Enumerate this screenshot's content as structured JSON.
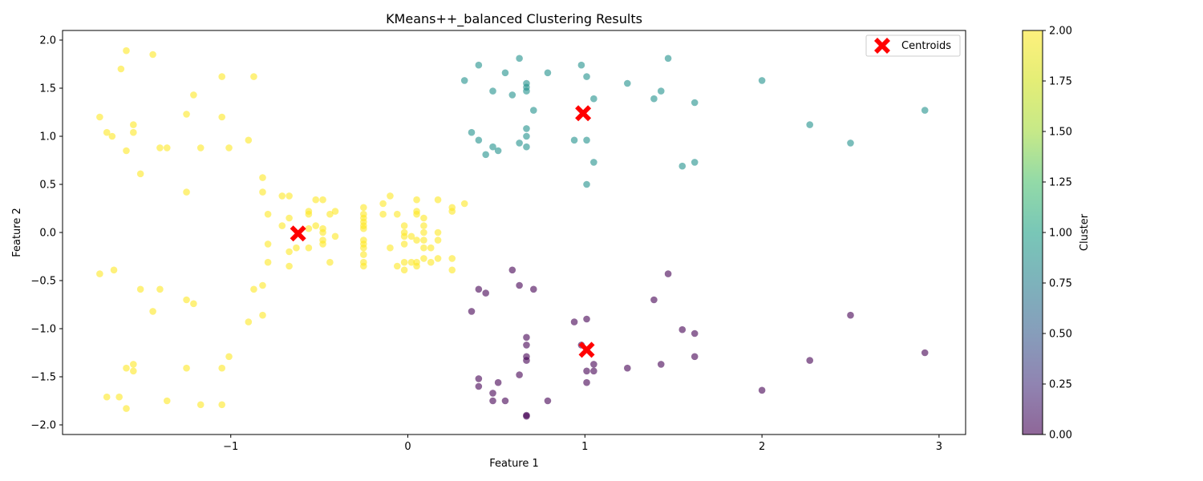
{
  "chart_data": {
    "type": "scatter",
    "title": "KMeans++_balanced Clustering Results",
    "xlabel": "Feature 1",
    "ylabel": "Feature 2",
    "xlim": [
      -1.95,
      3.15
    ],
    "ylim": [
      -2.1,
      2.1
    ],
    "xticks": [
      -1,
      0,
      1,
      2,
      3
    ],
    "xtick_labels": [
      "−1",
      "0",
      "1",
      "2",
      "3"
    ],
    "yticks": [
      -2.0,
      -1.5,
      -1.0,
      -0.5,
      0.0,
      0.5,
      1.0,
      1.5,
      2.0
    ],
    "ytick_labels": [
      "−2.0",
      "−1.5",
      "−1.0",
      "−0.5",
      "0.0",
      "0.5",
      "1.0",
      "1.5",
      "2.0"
    ],
    "grid": false,
    "point_alpha": 0.6,
    "colors": {
      "cluster_0": "#440154",
      "cluster_1": "#21918c",
      "cluster_2": "#fde725",
      "centroid": "#ff0000"
    },
    "series": [
      {
        "name": "Cluster 2",
        "cluster": 2,
        "points": [
          [
            -1.59,
            1.89
          ],
          [
            -1.44,
            1.85
          ],
          [
            -1.62,
            1.7
          ],
          [
            -1.05,
            1.62
          ],
          [
            -0.87,
            1.62
          ],
          [
            -1.21,
            1.43
          ],
          [
            -1.74,
            1.2
          ],
          [
            -1.25,
            1.23
          ],
          [
            -1.05,
            1.2
          ],
          [
            -1.55,
            1.12
          ],
          [
            -1.7,
            1.04
          ],
          [
            -1.55,
            1.04
          ],
          [
            -1.67,
            1.0
          ],
          [
            -0.9,
            0.96
          ],
          [
            -1.4,
            0.88
          ],
          [
            -1.36,
            0.88
          ],
          [
            -1.17,
            0.88
          ],
          [
            -1.01,
            0.88
          ],
          [
            -1.59,
            0.85
          ],
          [
            -1.51,
            0.61
          ],
          [
            -0.82,
            0.57
          ],
          [
            -1.25,
            0.42
          ],
          [
            -0.82,
            0.42
          ],
          [
            -0.71,
            0.38
          ],
          [
            -0.67,
            0.38
          ],
          [
            -0.52,
            0.34
          ],
          [
            -0.48,
            0.34
          ],
          [
            -0.56,
            0.22
          ],
          [
            -0.41,
            0.22
          ],
          [
            -0.79,
            0.19
          ],
          [
            -0.56,
            0.19
          ],
          [
            -0.44,
            0.19
          ],
          [
            -0.67,
            0.15
          ],
          [
            -0.71,
            0.07
          ],
          [
            -0.52,
            0.07
          ],
          [
            -0.56,
            0.04
          ],
          [
            -0.48,
            0.04
          ],
          [
            -0.48,
            0.0
          ],
          [
            -0.41,
            -0.04
          ],
          [
            -0.48,
            -0.08
          ],
          [
            -0.48,
            -0.12
          ],
          [
            -0.79,
            -0.12
          ],
          [
            -0.56,
            -0.16
          ],
          [
            -0.63,
            -0.16
          ],
          [
            -0.67,
            -0.2
          ],
          [
            -0.79,
            -0.31
          ],
          [
            -0.44,
            -0.31
          ],
          [
            -0.67,
            -0.35
          ],
          [
            -0.25,
            0.26
          ],
          [
            -0.25,
            0.19
          ],
          [
            -0.25,
            0.15
          ],
          [
            -0.25,
            0.11
          ],
          [
            -0.25,
            0.07
          ],
          [
            -0.25,
            0.04
          ],
          [
            -0.25,
            -0.08
          ],
          [
            -0.25,
            -0.12
          ],
          [
            -0.25,
            -0.16
          ],
          [
            -0.25,
            -0.23
          ],
          [
            -0.25,
            -0.31
          ],
          [
            -0.25,
            -0.35
          ],
          [
            -0.1,
            0.38
          ],
          [
            -0.14,
            0.3
          ],
          [
            -0.14,
            0.19
          ],
          [
            -0.06,
            0.19
          ],
          [
            -0.02,
            0.07
          ],
          [
            -0.02,
            0.0
          ],
          [
            0.02,
            -0.04
          ],
          [
            -0.02,
            -0.04
          ],
          [
            -0.1,
            -0.16
          ],
          [
            -0.02,
            -0.12
          ],
          [
            -0.06,
            -0.35
          ],
          [
            -0.02,
            -0.39
          ],
          [
            -0.02,
            -0.31
          ],
          [
            0.02,
            -0.31
          ],
          [
            0.05,
            0.34
          ],
          [
            0.05,
            0.22
          ],
          [
            0.05,
            0.19
          ],
          [
            0.09,
            0.15
          ],
          [
            0.09,
            0.07
          ],
          [
            0.09,
            0.0
          ],
          [
            0.05,
            -0.08
          ],
          [
            0.09,
            -0.08
          ],
          [
            0.09,
            -0.16
          ],
          [
            0.13,
            -0.16
          ],
          [
            0.09,
            -0.27
          ],
          [
            0.05,
            -0.31
          ],
          [
            0.05,
            -0.35
          ],
          [
            0.13,
            -0.31
          ],
          [
            0.17,
            0.34
          ],
          [
            0.17,
            0.0
          ],
          [
            0.17,
            -0.08
          ],
          [
            0.17,
            -0.27
          ],
          [
            0.25,
            0.26
          ],
          [
            0.25,
            0.22
          ],
          [
            0.32,
            0.3
          ],
          [
            0.25,
            -0.27
          ],
          [
            0.25,
            -0.39
          ],
          [
            -1.74,
            -0.43
          ],
          [
            -1.66,
            -0.39
          ],
          [
            -1.51,
            -0.59
          ],
          [
            -1.4,
            -0.59
          ],
          [
            -0.87,
            -0.59
          ],
          [
            -0.82,
            -0.55
          ],
          [
            -1.25,
            -0.7
          ],
          [
            -1.21,
            -0.74
          ],
          [
            -1.44,
            -0.82
          ],
          [
            -0.82,
            -0.86
          ],
          [
            -0.9,
            -0.93
          ],
          [
            -1.01,
            -1.29
          ],
          [
            -1.55,
            -1.37
          ],
          [
            -1.59,
            -1.41
          ],
          [
            -1.55,
            -1.44
          ],
          [
            -1.25,
            -1.41
          ],
          [
            -1.05,
            -1.41
          ],
          [
            -1.7,
            -1.71
          ],
          [
            -1.63,
            -1.71
          ],
          [
            -1.36,
            -1.75
          ],
          [
            -1.17,
            -1.79
          ],
          [
            -1.05,
            -1.79
          ],
          [
            -1.59,
            -1.83
          ]
        ]
      },
      {
        "name": "Cluster 1",
        "cluster": 1,
        "points": [
          [
            0.63,
            1.81
          ],
          [
            0.4,
            1.74
          ],
          [
            0.98,
            1.74
          ],
          [
            1.47,
            1.81
          ],
          [
            0.55,
            1.66
          ],
          [
            0.79,
            1.66
          ],
          [
            1.01,
            1.62
          ],
          [
            0.32,
            1.58
          ],
          [
            0.67,
            1.55
          ],
          [
            1.24,
            1.55
          ],
          [
            2.0,
            1.58
          ],
          [
            0.67,
            1.51
          ],
          [
            0.48,
            1.47
          ],
          [
            0.67,
            1.47
          ],
          [
            1.43,
            1.47
          ],
          [
            0.59,
            1.43
          ],
          [
            1.05,
            1.39
          ],
          [
            1.39,
            1.39
          ],
          [
            1.62,
            1.35
          ],
          [
            0.71,
            1.27
          ],
          [
            2.92,
            1.27
          ],
          [
            2.27,
            1.12
          ],
          [
            0.67,
            1.08
          ],
          [
            0.36,
            1.04
          ],
          [
            0.67,
            1.0
          ],
          [
            0.4,
            0.96
          ],
          [
            0.94,
            0.96
          ],
          [
            1.01,
            0.96
          ],
          [
            0.63,
            0.93
          ],
          [
            2.5,
            0.93
          ],
          [
            0.48,
            0.89
          ],
          [
            0.67,
            0.89
          ],
          [
            0.51,
            0.85
          ],
          [
            0.44,
            0.81
          ],
          [
            1.05,
            0.73
          ],
          [
            1.62,
            0.73
          ],
          [
            1.55,
            0.69
          ],
          [
            1.01,
            0.5
          ]
        ]
      },
      {
        "name": "Cluster 0",
        "cluster": 0,
        "points": [
          [
            0.59,
            -0.39
          ],
          [
            1.47,
            -0.43
          ],
          [
            0.63,
            -0.55
          ],
          [
            0.4,
            -0.59
          ],
          [
            0.71,
            -0.59
          ],
          [
            0.44,
            -0.63
          ],
          [
            1.39,
            -0.7
          ],
          [
            0.36,
            -0.82
          ],
          [
            2.5,
            -0.86
          ],
          [
            1.01,
            -0.9
          ],
          [
            0.94,
            -0.93
          ],
          [
            1.55,
            -1.01
          ],
          [
            1.62,
            -1.05
          ],
          [
            0.67,
            -1.09
          ],
          [
            0.67,
            -1.17
          ],
          [
            0.98,
            -1.17
          ],
          [
            2.92,
            -1.25
          ],
          [
            0.67,
            -1.29
          ],
          [
            1.62,
            -1.29
          ],
          [
            0.67,
            -1.33
          ],
          [
            2.27,
            -1.33
          ],
          [
            1.05,
            -1.37
          ],
          [
            1.43,
            -1.37
          ],
          [
            1.24,
            -1.41
          ],
          [
            1.01,
            -1.44
          ],
          [
            1.05,
            -1.44
          ],
          [
            0.63,
            -1.48
          ],
          [
            0.4,
            -1.52
          ],
          [
            0.51,
            -1.56
          ],
          [
            1.01,
            -1.56
          ],
          [
            0.4,
            -1.6
          ],
          [
            2.0,
            -1.64
          ],
          [
            0.48,
            -1.67
          ],
          [
            0.48,
            -1.75
          ],
          [
            0.55,
            -1.75
          ],
          [
            0.79,
            -1.75
          ],
          [
            0.67,
            -1.9
          ],
          [
            0.67,
            -1.91
          ]
        ]
      }
    ],
    "centroids": {
      "name": "Centroids",
      "marker": "X",
      "points": [
        [
          -0.62,
          -0.01
        ],
        [
          0.99,
          1.24
        ],
        [
          1.01,
          -1.22
        ]
      ]
    },
    "legend": {
      "position": "top-right",
      "entries": [
        "Centroids"
      ]
    },
    "colorbar": {
      "label": "Cluster",
      "range": [
        0.0,
        2.0
      ],
      "colormap": "viridis",
      "ticks": [
        0.0,
        0.25,
        0.5,
        0.75,
        1.0,
        1.25,
        1.5,
        1.75,
        2.0
      ],
      "tick_labels": [
        "0.00",
        "0.25",
        "0.50",
        "0.75",
        "1.00",
        "1.25",
        "1.50",
        "1.75",
        "2.00"
      ]
    }
  }
}
